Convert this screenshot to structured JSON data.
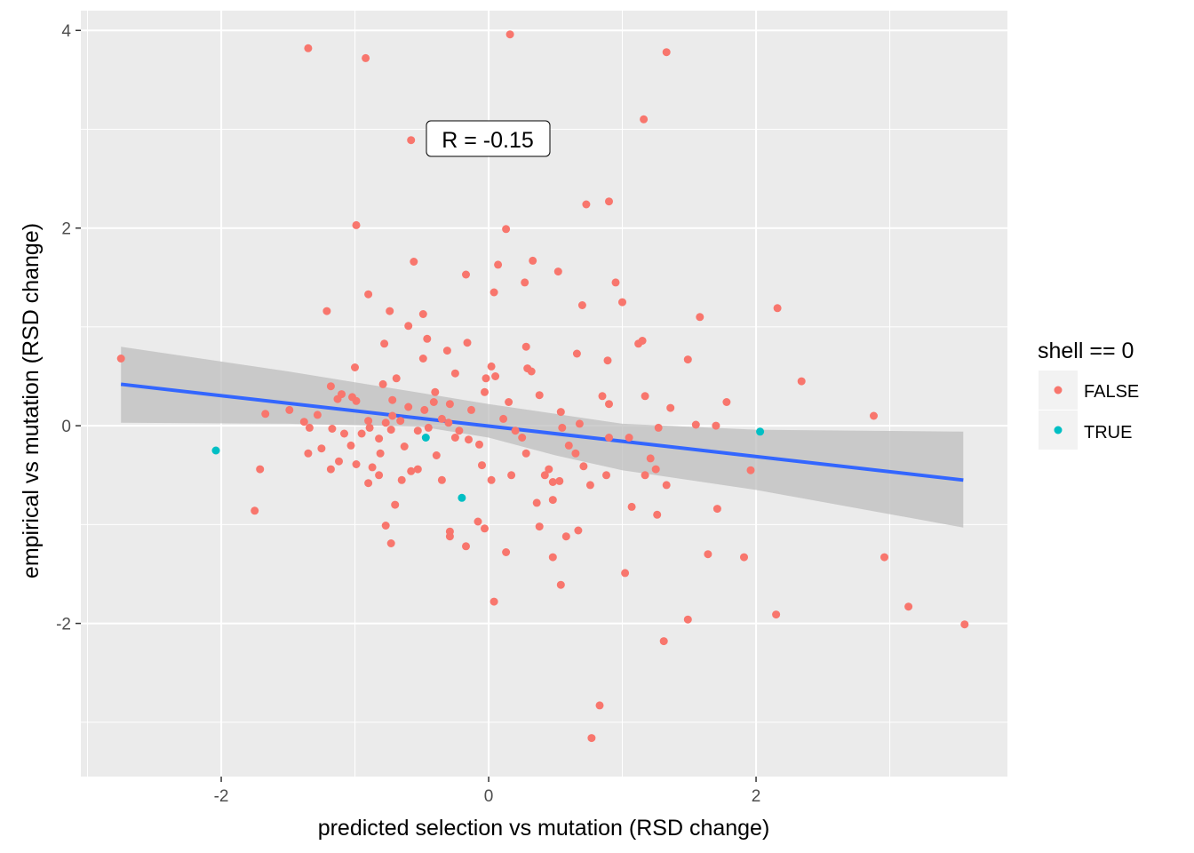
{
  "chart_data": {
    "type": "scatter",
    "xlabel": "predicted selection vs mutation (RSD change)",
    "ylabel": "empirical vs mutation (RSD change)",
    "xlim": [
      -3.05,
      3.88
    ],
    "ylim": [
      -3.55,
      4.2
    ],
    "x_ticks": [
      -2,
      0,
      2
    ],
    "y_ticks": [
      -2,
      0,
      2,
      4
    ],
    "x_tick_labels": [
      "-2",
      "0",
      "2"
    ],
    "y_tick_labels": [
      "-2",
      "0",
      "2",
      "4"
    ],
    "grid": true,
    "legend": {
      "title": "shell == 0",
      "placement": "right",
      "entries": [
        {
          "label": "FALSE",
          "color": "#F8766D"
        },
        {
          "label": "TRUE",
          "color": "#00BFC4"
        }
      ]
    },
    "annotation": {
      "text": "R = -0.15",
      "x": 0.01,
      "y": 2.98
    },
    "regression": {
      "color": "#3366FF",
      "band_color": "#c8c8c8",
      "line": [
        [
          -2.75,
          0.42
        ],
        [
          3.55,
          -0.55
        ]
      ],
      "band_upper": [
        [
          -2.75,
          0.8
        ],
        [
          -1.5,
          0.55
        ],
        [
          -0.5,
          0.33
        ],
        [
          0.0,
          0.22
        ],
        [
          0.5,
          0.12
        ],
        [
          1.0,
          0.02
        ],
        [
          2.0,
          -0.04
        ],
        [
          3.55,
          -0.06
        ]
      ],
      "band_lower": [
        [
          -2.75,
          0.03
        ],
        [
          -1.5,
          0.02
        ],
        [
          -0.5,
          -0.01
        ],
        [
          0.0,
          -0.12
        ],
        [
          0.5,
          -0.3
        ],
        [
          1.0,
          -0.45
        ],
        [
          2.0,
          -0.65
        ],
        [
          3.55,
          -1.03
        ]
      ]
    },
    "series": [
      {
        "name": "FALSE",
        "color": "#F8766D",
        "points": [
          [
            -1.35,
            3.82
          ],
          [
            -0.92,
            3.72
          ],
          [
            0.16,
            3.96
          ],
          [
            1.33,
            3.78
          ],
          [
            1.16,
            3.1
          ],
          [
            -0.58,
            2.89
          ],
          [
            0.73,
            2.24
          ],
          [
            0.9,
            2.27
          ],
          [
            -0.99,
            2.03
          ],
          [
            0.13,
            1.99
          ],
          [
            0.33,
            1.67
          ],
          [
            -0.56,
            1.66
          ],
          [
            0.07,
            1.63
          ],
          [
            0.52,
            1.56
          ],
          [
            -0.17,
            1.53
          ],
          [
            0.27,
            1.45
          ],
          [
            0.95,
            1.45
          ],
          [
            -0.9,
            1.33
          ],
          [
            0.04,
            1.35
          ],
          [
            1.0,
            1.25
          ],
          [
            0.7,
            1.22
          ],
          [
            -1.21,
            1.16
          ],
          [
            -0.74,
            1.16
          ],
          [
            -0.49,
            1.13
          ],
          [
            2.16,
            1.19
          ],
          [
            1.58,
            1.1
          ],
          [
            -0.6,
            1.01
          ],
          [
            1.12,
            0.83
          ],
          [
            1.15,
            0.86
          ],
          [
            -0.46,
            0.88
          ],
          [
            -0.78,
            0.83
          ],
          [
            -0.16,
            0.84
          ],
          [
            0.28,
            0.8
          ],
          [
            -0.31,
            0.76
          ],
          [
            0.66,
            0.73
          ],
          [
            -2.75,
            0.68
          ],
          [
            -0.49,
            0.68
          ],
          [
            0.89,
            0.66
          ],
          [
            1.49,
            0.67
          ],
          [
            -1.0,
            0.59
          ],
          [
            0.29,
            0.58
          ],
          [
            0.32,
            0.55
          ],
          [
            0.02,
            0.6
          ],
          [
            -0.25,
            0.53
          ],
          [
            0.05,
            0.5
          ],
          [
            -0.02,
            0.48
          ],
          [
            -0.69,
            0.48
          ],
          [
            -1.18,
            0.4
          ],
          [
            -0.79,
            0.42
          ],
          [
            -0.4,
            0.34
          ],
          [
            0.38,
            0.31
          ],
          [
            -0.03,
            0.34
          ],
          [
            1.17,
            0.3
          ],
          [
            0.85,
            0.3
          ],
          [
            2.34,
            0.45
          ],
          [
            -1.1,
            0.32
          ],
          [
            -1.02,
            0.29
          ],
          [
            -1.13,
            0.27
          ],
          [
            -0.99,
            0.25
          ],
          [
            -0.72,
            0.26
          ],
          [
            -0.41,
            0.24
          ],
          [
            -0.29,
            0.22
          ],
          [
            0.15,
            0.24
          ],
          [
            -0.6,
            0.19
          ],
          [
            0.9,
            0.22
          ],
          [
            0.54,
            0.14
          ],
          [
            1.36,
            0.18
          ],
          [
            1.78,
            0.24
          ],
          [
            -0.13,
            0.16
          ],
          [
            -0.48,
            0.16
          ],
          [
            -1.49,
            0.16
          ],
          [
            -1.67,
            0.12
          ],
          [
            -1.28,
            0.11
          ],
          [
            -0.72,
            0.1
          ],
          [
            -0.35,
            0.07
          ],
          [
            0.11,
            0.07
          ],
          [
            -1.38,
            0.04
          ],
          [
            -0.9,
            0.05
          ],
          [
            -0.77,
            0.03
          ],
          [
            -0.66,
            0.05
          ],
          [
            -0.3,
            0.03
          ],
          [
            0.68,
            0.02
          ],
          [
            1.55,
            0.01
          ],
          [
            2.88,
            0.1
          ],
          [
            -1.34,
            -0.02
          ],
          [
            -1.17,
            -0.03
          ],
          [
            -0.89,
            -0.02
          ],
          [
            -0.73,
            -0.04
          ],
          [
            -0.53,
            -0.05
          ],
          [
            -0.45,
            -0.02
          ],
          [
            -0.22,
            -0.05
          ],
          [
            0.2,
            -0.05
          ],
          [
            0.55,
            -0.02
          ],
          [
            1.27,
            -0.02
          ],
          [
            -1.08,
            -0.08
          ],
          [
            -0.95,
            -0.08
          ],
          [
            -0.82,
            -0.13
          ],
          [
            -0.25,
            -0.12
          ],
          [
            -0.15,
            -0.14
          ],
          [
            0.25,
            -0.12
          ],
          [
            0.9,
            -0.12
          ],
          [
            1.05,
            -0.12
          ],
          [
            -1.25,
            -0.23
          ],
          [
            -1.03,
            -0.2
          ],
          [
            -0.63,
            -0.21
          ],
          [
            -0.07,
            -0.19
          ],
          [
            0.6,
            -0.2
          ],
          [
            -1.35,
            -0.28
          ],
          [
            -0.81,
            -0.28
          ],
          [
            -0.39,
            -0.3
          ],
          [
            0.28,
            -0.28
          ],
          [
            0.65,
            -0.28
          ],
          [
            1.21,
            -0.33
          ],
          [
            -1.12,
            -0.36
          ],
          [
            -0.99,
            -0.39
          ],
          [
            -0.87,
            -0.42
          ],
          [
            -0.53,
            -0.44
          ],
          [
            0.45,
            -0.44
          ],
          [
            0.71,
            -0.41
          ],
          [
            1.25,
            -0.44
          ],
          [
            -1.18,
            -0.44
          ],
          [
            -0.58,
            -0.46
          ],
          [
            0.17,
            -0.5
          ],
          [
            0.42,
            -0.5
          ],
          [
            0.88,
            -0.5
          ],
          [
            1.17,
            -0.5
          ],
          [
            -0.9,
            -0.58
          ],
          [
            -0.65,
            -0.55
          ],
          [
            -0.35,
            -0.55
          ],
          [
            0.02,
            -0.55
          ],
          [
            0.48,
            -0.57
          ],
          [
            0.53,
            -0.56
          ],
          [
            -0.82,
            -0.5
          ],
          [
            -0.05,
            -0.4
          ],
          [
            1.33,
            -0.6
          ],
          [
            0.76,
            -0.6
          ],
          [
            1.96,
            -0.45
          ],
          [
            -0.7,
            -0.8
          ],
          [
            0.36,
            -0.78
          ],
          [
            0.48,
            -0.75
          ],
          [
            1.07,
            -0.82
          ],
          [
            1.71,
            -0.84
          ],
          [
            -1.75,
            -0.86
          ],
          [
            1.26,
            -0.9
          ],
          [
            -0.08,
            -0.97
          ],
          [
            -0.77,
            -1.01
          ],
          [
            0.38,
            -1.02
          ],
          [
            -0.03,
            -1.04
          ],
          [
            0.67,
            -1.06
          ],
          [
            -0.29,
            -1.07
          ],
          [
            0.58,
            -1.12
          ],
          [
            -0.29,
            -1.12
          ],
          [
            -0.73,
            -1.19
          ],
          [
            -0.17,
            -1.22
          ],
          [
            0.13,
            -1.28
          ],
          [
            0.48,
            -1.33
          ],
          [
            1.64,
            -1.3
          ],
          [
            1.91,
            -1.33
          ],
          [
            2.96,
            -1.33
          ],
          [
            1.02,
            -1.49
          ],
          [
            0.54,
            -1.61
          ],
          [
            0.04,
            -1.78
          ],
          [
            3.14,
            -1.83
          ],
          [
            2.15,
            -1.91
          ],
          [
            1.49,
            -1.96
          ],
          [
            3.56,
            -2.01
          ],
          [
            1.31,
            -2.18
          ],
          [
            0.83,
            -2.83
          ],
          [
            0.77,
            -3.16
          ],
          [
            -1.71,
            -0.44
          ],
          [
            1.7,
            0.0
          ]
        ]
      },
      {
        "name": "TRUE",
        "color": "#00BFC4",
        "points": [
          [
            -2.04,
            -0.25
          ],
          [
            -0.47,
            -0.12
          ],
          [
            -0.2,
            -0.73
          ],
          [
            2.03,
            -0.06
          ]
        ]
      }
    ]
  }
}
